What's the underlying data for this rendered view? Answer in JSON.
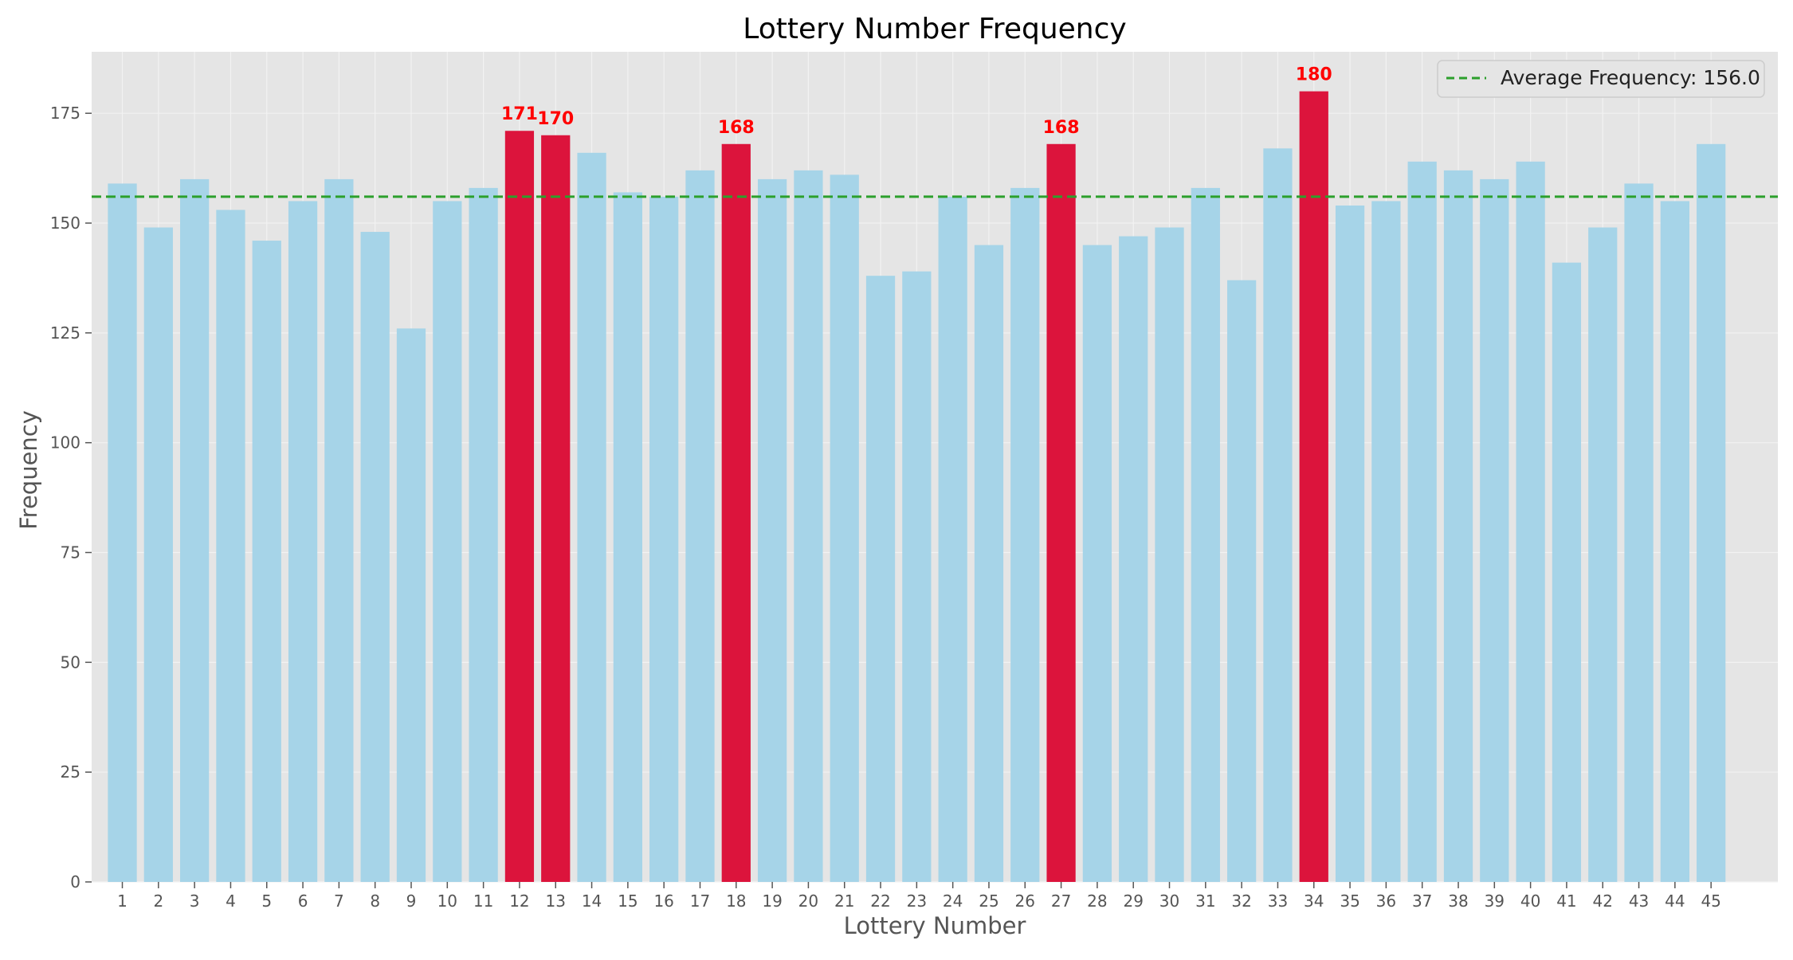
{
  "chart_data": {
    "type": "bar",
    "title": "Lottery Number Frequency",
    "xlabel": "Lottery Number",
    "ylabel": "Frequency",
    "ylim": [
      0,
      189
    ],
    "yticks": [
      0,
      25,
      50,
      75,
      100,
      125,
      150,
      175
    ],
    "grid": true,
    "legend_position": "top-right",
    "categories": [
      "1",
      "2",
      "3",
      "4",
      "5",
      "6",
      "7",
      "8",
      "9",
      "10",
      "11",
      "12",
      "13",
      "14",
      "15",
      "16",
      "17",
      "18",
      "19",
      "20",
      "21",
      "22",
      "23",
      "24",
      "25",
      "26",
      "27",
      "28",
      "29",
      "30",
      "31",
      "32",
      "33",
      "34",
      "35",
      "36",
      "37",
      "38",
      "39",
      "40",
      "41",
      "42",
      "43",
      "44",
      "45"
    ],
    "values": [
      159,
      149,
      160,
      153,
      146,
      155,
      160,
      148,
      126,
      155,
      158,
      171,
      170,
      166,
      157,
      156,
      162,
      168,
      160,
      162,
      161,
      138,
      139,
      156,
      145,
      158,
      168,
      145,
      147,
      149,
      158,
      137,
      167,
      180,
      154,
      155,
      164,
      162,
      160,
      164,
      141,
      149,
      159,
      155,
      168
    ],
    "highlighted": [
      "12",
      "13",
      "18",
      "27",
      "34"
    ],
    "highlight_labels": [
      {
        "category": "12",
        "text": "171"
      },
      {
        "category": "13",
        "text": "170"
      },
      {
        "category": "18",
        "text": "168"
      },
      {
        "category": "27",
        "text": "168"
      },
      {
        "category": "34",
        "text": "180"
      }
    ],
    "reference_line": {
      "value": 156.0,
      "label": "Average Frequency: 156.0",
      "style": "dashed"
    },
    "colors": {
      "bar": "#a6d4e8",
      "highlight": "#dc143c",
      "highlight_label": "#ff0000",
      "average_line": "#2ca02c",
      "plot_background": "#e5e5e5",
      "grid": "#f2f2f2",
      "tick_text": "#555555",
      "axis_label": "#555555",
      "title": "#000000"
    }
  }
}
